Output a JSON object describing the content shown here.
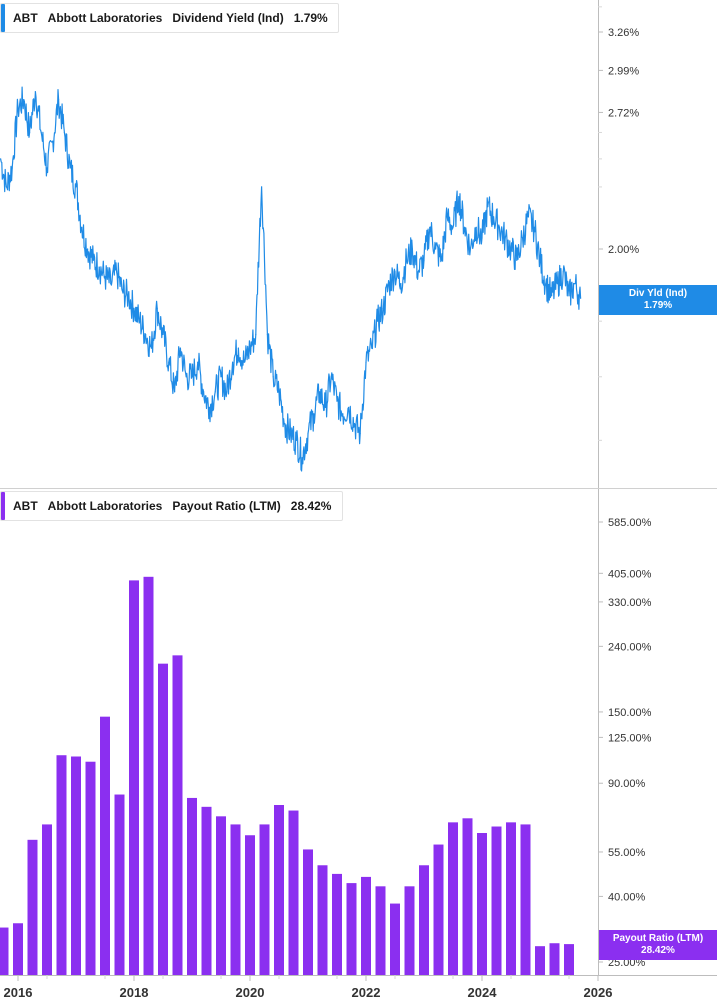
{
  "colors": {
    "yield": "#1f8be6",
    "payout": "#8b2ff0",
    "axis": "#bdbdbd",
    "text": "#333333"
  },
  "panel1": {
    "legend": {
      "ticker": "ABT",
      "company": "Abbott Laboratories",
      "metric": "Dividend Yield (Ind)",
      "value": "1.79%"
    },
    "tag": {
      "label": "Div Yld (Ind)",
      "value": "1.79%"
    }
  },
  "panel2": {
    "legend": {
      "ticker": "ABT",
      "company": "Abbott Laboratories",
      "metric": "Payout Ratio (LTM)",
      "value": "28.42%"
    },
    "tag": {
      "label": "Payout Ratio (LTM)",
      "value": "28.42%"
    }
  },
  "chart_data": [
    {
      "type": "line",
      "title": "Dividend Yield (Ind)",
      "ylabel": "",
      "y_scale": "log",
      "y_ticks": [
        "3.26%",
        "2.99%",
        "2.72%",
        "2.00%"
      ],
      "ylim": [
        1.2,
        3.5
      ],
      "x_ticks": [
        "2016",
        "2018",
        "2020",
        "2022",
        "2024",
        "2026"
      ],
      "xlim": [
        2015.7,
        2026.0
      ],
      "series": [
        {
          "name": "Dividend Yield (Ind)",
          "x": [
            2015.7,
            2015.8,
            2015.9,
            2016.0,
            2016.1,
            2016.2,
            2016.3,
            2016.4,
            2016.5,
            2016.6,
            2016.7,
            2016.8,
            2016.9,
            2017.0,
            2017.1,
            2017.2,
            2017.3,
            2017.4,
            2017.5,
            2017.6,
            2017.7,
            2017.8,
            2017.9,
            2018.0,
            2018.1,
            2018.2,
            2018.3,
            2018.4,
            2018.5,
            2018.6,
            2018.7,
            2018.8,
            2018.9,
            2019.0,
            2019.1,
            2019.2,
            2019.3,
            2019.4,
            2019.5,
            2019.6,
            2019.7,
            2019.8,
            2019.9,
            2020.0,
            2020.1,
            2020.2,
            2020.3,
            2020.4,
            2020.5,
            2020.6,
            2020.7,
            2020.8,
            2020.9,
            2021.0,
            2021.1,
            2021.2,
            2021.3,
            2021.4,
            2021.5,
            2021.6,
            2021.7,
            2021.8,
            2021.9,
            2022.0,
            2022.1,
            2022.2,
            2022.3,
            2022.4,
            2022.5,
            2022.6,
            2022.7,
            2022.8,
            2022.9,
            2023.0,
            2023.1,
            2023.2,
            2023.3,
            2023.4,
            2023.5,
            2023.6,
            2023.7,
            2023.8,
            2023.9,
            2024.0,
            2024.1,
            2024.2,
            2024.3,
            2024.4,
            2024.5,
            2024.6,
            2024.7,
            2024.8,
            2024.9,
            2025.0,
            2025.1,
            2025.2,
            2025.3,
            2025.4,
            2025.5,
            2025.6,
            2025.7
          ],
          "values": [
            2.45,
            2.3,
            2.4,
            2.75,
            2.8,
            2.6,
            2.85,
            2.6,
            2.4,
            2.55,
            2.8,
            2.6,
            2.4,
            2.3,
            2.1,
            2.0,
            1.95,
            1.92,
            1.88,
            1.85,
            1.9,
            1.82,
            1.8,
            1.75,
            1.7,
            1.65,
            1.6,
            1.75,
            1.65,
            1.55,
            1.45,
            1.6,
            1.5,
            1.5,
            1.55,
            1.45,
            1.4,
            1.45,
            1.5,
            1.45,
            1.55,
            1.6,
            1.55,
            1.6,
            1.65,
            2.3,
            1.65,
            1.5,
            1.45,
            1.35,
            1.32,
            1.3,
            1.25,
            1.32,
            1.38,
            1.45,
            1.4,
            1.5,
            1.42,
            1.38,
            1.4,
            1.35,
            1.32,
            1.55,
            1.6,
            1.7,
            1.75,
            1.85,
            1.9,
            1.85,
            1.95,
            2.0,
            1.9,
            1.95,
            2.1,
            2.0,
            1.95,
            2.15,
            2.1,
            2.25,
            2.1,
            2.0,
            2.1,
            2.05,
            2.2,
            2.15,
            2.1,
            2.05,
            2.0,
            1.95,
            2.05,
            2.15,
            2.1,
            1.95,
            1.85,
            1.8,
            1.85,
            1.9,
            1.8,
            1.85,
            1.79
          ]
        }
      ]
    },
    {
      "type": "bar",
      "title": "Payout Ratio (LTM)",
      "ylabel": "",
      "y_scale": "log",
      "y_ticks": [
        "585.00%",
        "405.00%",
        "330.00%",
        "240.00%",
        "150.00%",
        "125.00%",
        "90.00%",
        "55.00%",
        "40.00%",
        "25.00%"
      ],
      "ylim": [
        25,
        600
      ],
      "x_ticks": [
        "2016",
        "2018",
        "2020",
        "2022",
        "2024",
        "2026"
      ],
      "xlim": [
        2015.7,
        2026.0
      ],
      "series": [
        {
          "name": "Payout Ratio (LTM)",
          "x": [
            2015.75,
            2016.0,
            2016.25,
            2016.5,
            2016.75,
            2017.0,
            2017.25,
            2017.5,
            2017.75,
            2018.0,
            2018.25,
            2018.5,
            2018.75,
            2019.0,
            2019.25,
            2019.5,
            2019.75,
            2020.0,
            2020.25,
            2020.5,
            2020.75,
            2021.0,
            2021.25,
            2021.5,
            2021.75,
            2022.0,
            2022.25,
            2022.5,
            2022.75,
            2023.0,
            2023.25,
            2023.5,
            2023.75,
            2024.0,
            2024.25,
            2024.5,
            2024.75,
            2025.0,
            2025.25,
            2025.5
          ],
          "values": [
            32,
            33,
            60,
            67,
            110,
            109,
            105,
            145,
            83,
            385,
            395,
            212,
            225,
            81,
            76,
            71,
            67,
            62,
            67,
            77,
            74,
            56,
            50,
            47,
            44,
            46,
            43,
            38,
            43,
            50,
            58,
            68,
            70,
            63,
            66,
            68,
            67,
            28,
            28.6,
            28.42
          ]
        }
      ]
    }
  ]
}
